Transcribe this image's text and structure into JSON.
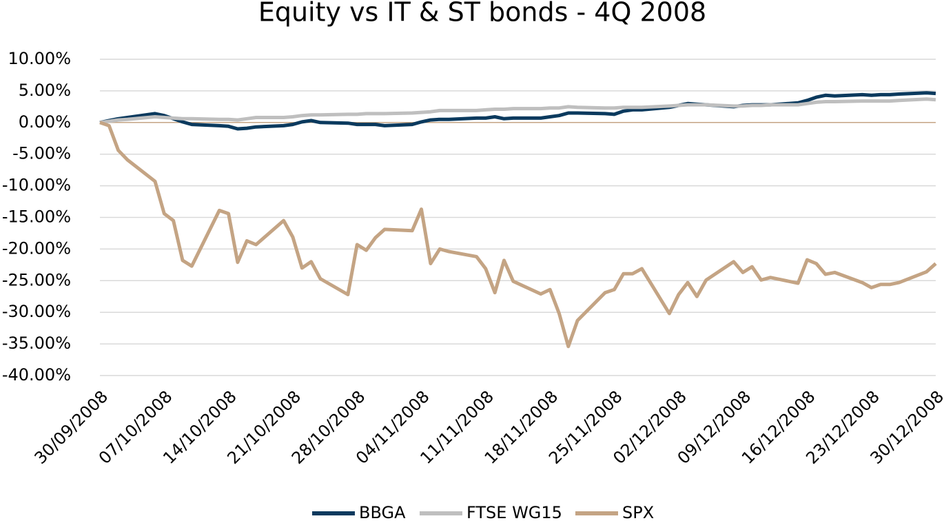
{
  "chart_data": {
    "type": "line",
    "title": "Equity vs IT & ST bonds - 4Q 2008",
    "x": [
      "30/09/2008",
      "01/10/2008",
      "02/10/2008",
      "03/10/2008",
      "06/10/2008",
      "07/10/2008",
      "08/10/2008",
      "09/10/2008",
      "10/10/2008",
      "13/10/2008",
      "14/10/2008",
      "15/10/2008",
      "16/10/2008",
      "17/10/2008",
      "20/10/2008",
      "21/10/2008",
      "22/10/2008",
      "23/10/2008",
      "24/10/2008",
      "27/10/2008",
      "28/10/2008",
      "29/10/2008",
      "30/10/2008",
      "31/10/2008",
      "03/11/2008",
      "04/11/2008",
      "05/11/2008",
      "06/11/2008",
      "07/11/2008",
      "10/11/2008",
      "11/11/2008",
      "12/11/2008",
      "13/11/2008",
      "14/11/2008",
      "17/11/2008",
      "18/11/2008",
      "19/11/2008",
      "20/11/2008",
      "21/11/2008",
      "24/11/2008",
      "25/11/2008",
      "26/11/2008",
      "27/11/2008",
      "28/11/2008",
      "01/12/2008",
      "02/12/2008",
      "03/12/2008",
      "04/12/2008",
      "05/12/2008",
      "08/12/2008",
      "09/12/2008",
      "10/12/2008",
      "11/12/2008",
      "12/12/2008",
      "15/12/2008",
      "16/12/2008",
      "17/12/2008",
      "18/12/2008",
      "19/12/2008",
      "22/12/2008",
      "23/12/2008",
      "24/12/2008",
      "25/12/2008",
      "26/12/2008",
      "29/12/2008",
      "30/12/2008"
    ],
    "series": [
      {
        "name": "BBGA",
        "color": "#0b3a5e",
        "values": [
          0,
          0.3,
          0.6,
          0.8,
          1.4,
          1.1,
          0.6,
          0.1,
          -0.3,
          -0.5,
          -0.6,
          -1.0,
          -0.9,
          -0.7,
          -0.5,
          -0.3,
          0.1,
          0.3,
          0.0,
          -0.1,
          -0.3,
          -0.3,
          -0.3,
          -0.5,
          -0.3,
          0.1,
          0.4,
          0.5,
          0.5,
          0.7,
          0.7,
          0.9,
          0.6,
          0.7,
          0.7,
          0.9,
          1.1,
          1.5,
          1.5,
          1.4,
          1.3,
          1.8,
          2.0,
          2.0,
          2.4,
          2.7,
          3.0,
          2.9,
          2.8,
          2.5,
          2.7,
          2.8,
          2.8,
          2.8,
          3.1,
          3.5,
          4.0,
          4.3,
          4.2,
          4.4,
          4.3,
          4.4,
          4.4,
          4.5,
          4.7,
          4.6
        ]
      },
      {
        "name": "FTSE WG15",
        "color": "#bfbfbf",
        "values": [
          0,
          0.2,
          0.4,
          0.5,
          0.9,
          0.8,
          0.7,
          0.6,
          0.6,
          0.5,
          0.5,
          0.4,
          0.6,
          0.8,
          0.8,
          0.9,
          1.1,
          1.2,
          1.2,
          1.3,
          1.3,
          1.4,
          1.4,
          1.4,
          1.5,
          1.6,
          1.7,
          1.9,
          1.9,
          1.9,
          2.0,
          2.1,
          2.1,
          2.2,
          2.2,
          2.3,
          2.3,
          2.5,
          2.4,
          2.3,
          2.3,
          2.4,
          2.4,
          2.4,
          2.6,
          2.7,
          2.8,
          2.8,
          2.8,
          2.6,
          2.6,
          2.7,
          2.7,
          2.8,
          2.8,
          3.0,
          3.2,
          3.3,
          3.3,
          3.4,
          3.4,
          3.4,
          3.4,
          3.5,
          3.7,
          3.6
        ]
      },
      {
        "name": "SPX",
        "color": "#c4a484",
        "values": [
          0,
          -0.5,
          -4.4,
          -5.9,
          -9.3,
          -14.4,
          -15.5,
          -21.8,
          -22.7,
          -13.9,
          -14.4,
          -22.1,
          -18.7,
          -19.3,
          -15.5,
          -18.1,
          -23.0,
          -22.0,
          -24.7,
          -27.2,
          -19.3,
          -20.2,
          -18.2,
          -16.9,
          -17.1,
          -13.7,
          -22.3,
          -20.0,
          -20.4,
          -21.2,
          -23.1,
          -26.9,
          -21.8,
          -25.1,
          -27.1,
          -26.4,
          -30.2,
          -35.4,
          -31.3,
          -26.9,
          -26.4,
          -23.9,
          -23.9,
          -23.1,
          -30.2,
          -27.2,
          -25.3,
          -27.5,
          -24.9,
          -22.0,
          -23.7,
          -22.8,
          -24.9,
          -24.5,
          -25.4,
          -21.7,
          -22.3,
          -24.0,
          -23.7,
          -25.3,
          -26.1,
          -25.6,
          -25.6,
          -25.3,
          -23.6,
          -22.3
        ]
      }
    ],
    "xlim": [
      "30/09/2008",
      "30/12/2008"
    ],
    "xticks": [
      "30/09/2008",
      "07/10/2008",
      "14/10/2008",
      "21/10/2008",
      "28/10/2008",
      "04/11/2008",
      "11/11/2008",
      "18/11/2008",
      "25/11/2008",
      "02/12/2008",
      "09/12/2008",
      "16/12/2008",
      "23/12/2008",
      "30/12/2008"
    ],
    "ylim": [
      -40,
      10
    ],
    "yticks": [
      {
        "value": -40,
        "label": "-40.00%"
      },
      {
        "value": -35,
        "label": "-35.00%"
      },
      {
        "value": -30,
        "label": "-30.00%"
      },
      {
        "value": -25,
        "label": "-25.00%"
      },
      {
        "value": -20,
        "label": "-20.00%"
      },
      {
        "value": -15,
        "label": "-15.00%"
      },
      {
        "value": -10,
        "label": "-10.00%"
      },
      {
        "value": -5,
        "label": "-5.00%"
      },
      {
        "value": 0,
        "label": "0.00%"
      },
      {
        "value": 5,
        "label": "5.00%"
      },
      {
        "value": 10,
        "label": "10.00%"
      }
    ],
    "grid": true,
    "zero_line_color": "#c4a484",
    "legend": "bottom"
  }
}
